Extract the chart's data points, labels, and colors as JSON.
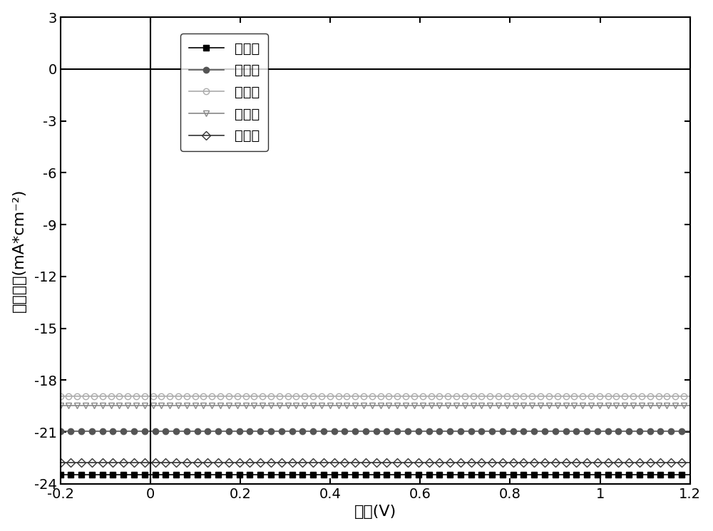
{
  "title": "",
  "xlabel": "电压(V)",
  "ylabel": "电流密度(mA*cm⁻²)",
  "xlim": [
    -0.2,
    1.2
  ],
  "ylim": [
    -24,
    3
  ],
  "xticks": [
    -0.2,
    0.0,
    0.2,
    0.4,
    0.6,
    0.8,
    1.0,
    1.2
  ],
  "yticks": [
    -24,
    -21,
    -18,
    -15,
    -12,
    -9,
    -6,
    -3,
    0,
    3
  ],
  "curves": [
    {
      "label": "案例一",
      "color": "#000000",
      "marker": "s",
      "fillstyle": "full",
      "Jsc": -23.5,
      "Voc": 1.085,
      "n": 1.6,
      "Rsh": 2000,
      "Rs": 3.5
    },
    {
      "label": "案例二",
      "color": "#555555",
      "marker": "o",
      "fillstyle": "full",
      "Jsc": -21.0,
      "Voc": 1.055,
      "n": 1.6,
      "Rsh": 2000,
      "Rs": 3.5
    },
    {
      "label": "案例三",
      "color": "#aaaaaa",
      "marker": "o",
      "fillstyle": "none",
      "Jsc": -19.0,
      "Voc": 0.97,
      "n": 2.8,
      "Rsh": 500,
      "Rs": 2.0
    },
    {
      "label": "案例四",
      "color": "#888888",
      "marker": "v",
      "fillstyle": "none",
      "Jsc": -19.5,
      "Voc": 1.02,
      "n": 1.6,
      "Rsh": 2000,
      "Rs": 3.5
    },
    {
      "label": "案例五",
      "color": "#333333",
      "marker": "D",
      "fillstyle": "none",
      "Jsc": -22.8,
      "Voc": 1.065,
      "n": 1.6,
      "Rsh": 2000,
      "Rs": 3.5
    }
  ],
  "background_color": "#ffffff",
  "linewidth": 1.2,
  "markersize": 6,
  "n_points": 300
}
